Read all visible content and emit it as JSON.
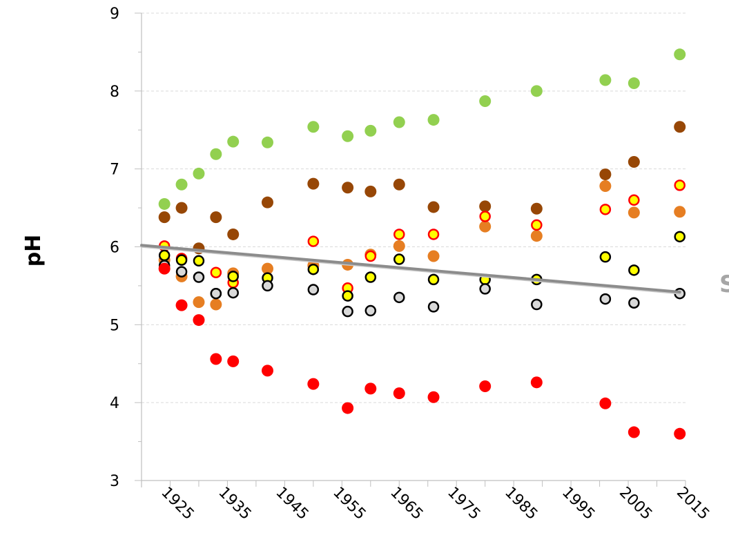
{
  "chart_data": {
    "type": "scatter",
    "title": "",
    "xlabel": "",
    "ylabel": "pH",
    "xlim": [
      1920,
      2015
    ],
    "ylim": [
      3,
      9
    ],
    "x_ticks": [
      "1925",
      "1935",
      "1945",
      "1955",
      "1965",
      "1975",
      "1985",
      "1995",
      "2005",
      "2015"
    ],
    "y_ticks": [
      "3",
      "4",
      "5",
      "6",
      "7",
      "8",
      "9"
    ],
    "grid": "horizontal dashed",
    "legend": "none",
    "annotation": "S",
    "colors": {
      "axis": "#bfbfbf",
      "grid": "#d9d9d9",
      "trend": "#8c8c8c",
      "annotation": "#a6a6a6"
    },
    "trendline": {
      "x": [
        1920,
        2014
      ],
      "y": [
        6.02,
        5.42
      ]
    },
    "series": [
      {
        "fill": "#92d050",
        "stroke": "none",
        "x": [
          1924,
          1927,
          1930,
          1933,
          1936,
          1942,
          1950,
          1956,
          1960,
          1965,
          1971,
          1980,
          1989,
          2001,
          2006,
          2014
        ],
        "y": [
          6.55,
          6.8,
          6.94,
          7.19,
          7.35,
          7.34,
          7.54,
          7.42,
          7.49,
          7.6,
          7.63,
          7.87,
          8.0,
          8.14,
          8.1,
          8.47
        ]
      },
      {
        "fill": "#974706",
        "stroke": "none",
        "x": [
          1924,
          1927,
          1930,
          1933,
          1936,
          1942,
          1950,
          1956,
          1960,
          1965,
          1971,
          1980,
          1989,
          2001,
          2006,
          2014
        ],
        "y": [
          6.38,
          6.5,
          5.98,
          6.38,
          6.16,
          6.57,
          6.81,
          6.76,
          6.71,
          6.8,
          6.51,
          6.52,
          6.49,
          6.93,
          7.09,
          7.54
        ]
      },
      {
        "fill": "#e67e22",
        "stroke": "none",
        "x": [
          1924,
          1927,
          1930,
          1933,
          1936,
          1942,
          1950,
          1956,
          1960,
          1965,
          1971,
          1980,
          1989,
          2001,
          2006,
          2014
        ],
        "y": [
          5.83,
          5.62,
          5.29,
          5.26,
          5.66,
          5.72,
          5.76,
          5.77,
          5.9,
          6.01,
          5.88,
          6.26,
          6.14,
          6.78,
          6.44,
          6.45
        ]
      },
      {
        "fill": "#ffff00",
        "stroke": "#ff0000",
        "x": [
          1924,
          1927,
          1933,
          1936,
          1950,
          1956,
          1960,
          1965,
          1971,
          1980,
          1989,
          2001,
          2006,
          2014
        ],
        "y": [
          6.01,
          5.85,
          5.67,
          5.54,
          6.07,
          5.47,
          5.88,
          6.16,
          6.16,
          6.39,
          6.28,
          6.48,
          6.6,
          6.79
        ]
      },
      {
        "fill": "#ffff00",
        "stroke": "#000000",
        "x": [
          1924,
          1927,
          1930,
          1933,
          1936,
          1942,
          1950,
          1956,
          1960,
          1965,
          1971,
          1980,
          1989,
          2001,
          2006,
          2014
        ],
        "y": [
          5.89,
          5.83,
          5.82,
          5.4,
          5.62,
          5.6,
          5.71,
          5.37,
          5.61,
          5.84,
          5.58,
          5.58,
          5.58,
          5.87,
          5.7,
          6.13
        ]
      },
      {
        "fill": "#d9d9d9",
        "stroke": "#000000",
        "x": [
          1924,
          1927,
          1930,
          1933,
          1936,
          1942,
          1950,
          1956,
          1960,
          1965,
          1971,
          1980,
          1989,
          2001,
          2006,
          2014
        ],
        "y": [
          5.76,
          5.68,
          5.61,
          5.4,
          5.41,
          5.5,
          5.45,
          5.17,
          5.18,
          5.35,
          5.23,
          5.46,
          5.26,
          5.33,
          5.28,
          5.4
        ]
      },
      {
        "fill": "#ff0000",
        "stroke": "none",
        "x": [
          1924,
          1927,
          1930,
          1933,
          1936,
          1942,
          1950,
          1956,
          1960,
          1965,
          1971,
          1980,
          1989,
          2001,
          2006,
          2014
        ],
        "y": [
          5.72,
          5.25,
          5.06,
          4.56,
          4.53,
          4.41,
          4.24,
          3.93,
          4.18,
          4.12,
          4.07,
          4.21,
          4.26,
          3.99,
          3.62,
          3.6
        ]
      }
    ]
  }
}
